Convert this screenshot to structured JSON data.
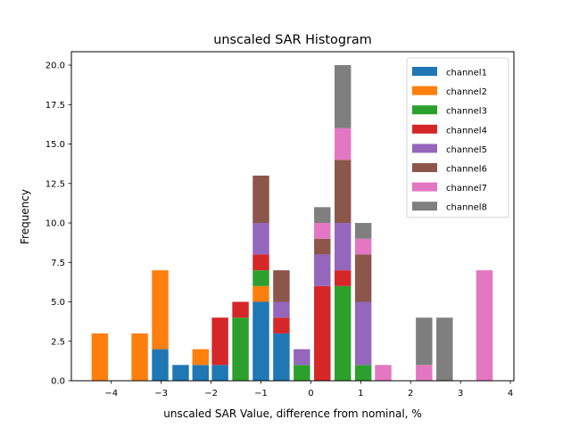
{
  "chart_data": {
    "type": "bar",
    "stacked": true,
    "title": "unscaled SAR Histogram",
    "xlabel": "unscaled SAR Value, difference from nominal, %",
    "ylabel": "Frequency",
    "xlim": [
      -4.8,
      4.07
    ],
    "ylim": [
      0,
      20.85
    ],
    "xticks": [
      -4,
      -3,
      -2,
      -1,
      0,
      1,
      2,
      3,
      4
    ],
    "xtick_labels": [
      "−4",
      "−3",
      "−2",
      "−1",
      "0",
      "1",
      "2",
      "3",
      "4"
    ],
    "yticks": [
      0,
      2.5,
      5,
      7.5,
      10,
      12.5,
      15,
      17.5,
      20
    ],
    "ytick_labels": [
      "0.0",
      "2.5",
      "5.0",
      "7.5",
      "10.0",
      "12.5",
      "15.0",
      "17.5",
      "20.0"
    ],
    "grid": false,
    "legend_position": "top-right",
    "bar_width": 0.33,
    "x": [
      -4.23,
      -3.43,
      -3.02,
      -2.61,
      -2.21,
      -1.82,
      -1.41,
      -1.0,
      -0.59,
      -0.18,
      0.23,
      0.64,
      1.05,
      1.45,
      2.27,
      2.68,
      3.48
    ],
    "series": [
      {
        "name": "channel1",
        "color": "#1f77b4",
        "values": [
          0,
          0,
          2,
          1,
          1,
          1,
          0,
          5,
          3,
          0,
          0,
          0,
          0,
          0,
          0,
          0,
          0
        ]
      },
      {
        "name": "channel2",
        "color": "#ff7f0e",
        "values": [
          3,
          3,
          5,
          0,
          1,
          0,
          0,
          1,
          0,
          0,
          0,
          0,
          0,
          0,
          0,
          0,
          0
        ]
      },
      {
        "name": "channel3",
        "color": "#2ca02c",
        "values": [
          0,
          0,
          0,
          0,
          0,
          0,
          4,
          1,
          0,
          1,
          0,
          6,
          1,
          0,
          0,
          0,
          0
        ]
      },
      {
        "name": "channel4",
        "color": "#d62728",
        "values": [
          0,
          0,
          0,
          0,
          0,
          3,
          1,
          1,
          1,
          0,
          6,
          1,
          0,
          0,
          0,
          0,
          0
        ]
      },
      {
        "name": "channel5",
        "color": "#9467bd",
        "values": [
          0,
          0,
          0,
          0,
          0,
          0,
          0,
          2,
          1,
          1,
          2,
          3,
          4,
          0,
          0,
          0,
          0
        ]
      },
      {
        "name": "channel6",
        "color": "#8c564b",
        "values": [
          0,
          0,
          0,
          0,
          0,
          0,
          0,
          3,
          2,
          0,
          1,
          4,
          3,
          0,
          0,
          0,
          0
        ]
      },
      {
        "name": "channel7",
        "color": "#e377c2",
        "values": [
          0,
          0,
          0,
          0,
          0,
          0,
          0,
          0,
          0,
          0,
          1,
          2,
          1,
          1,
          1,
          0,
          7
        ]
      },
      {
        "name": "channel8",
        "color": "#7f7f7f",
        "values": [
          0,
          0,
          0,
          0,
          0,
          0,
          0,
          0,
          0,
          0,
          1,
          4,
          1,
          0,
          3,
          4,
          0
        ]
      }
    ]
  }
}
